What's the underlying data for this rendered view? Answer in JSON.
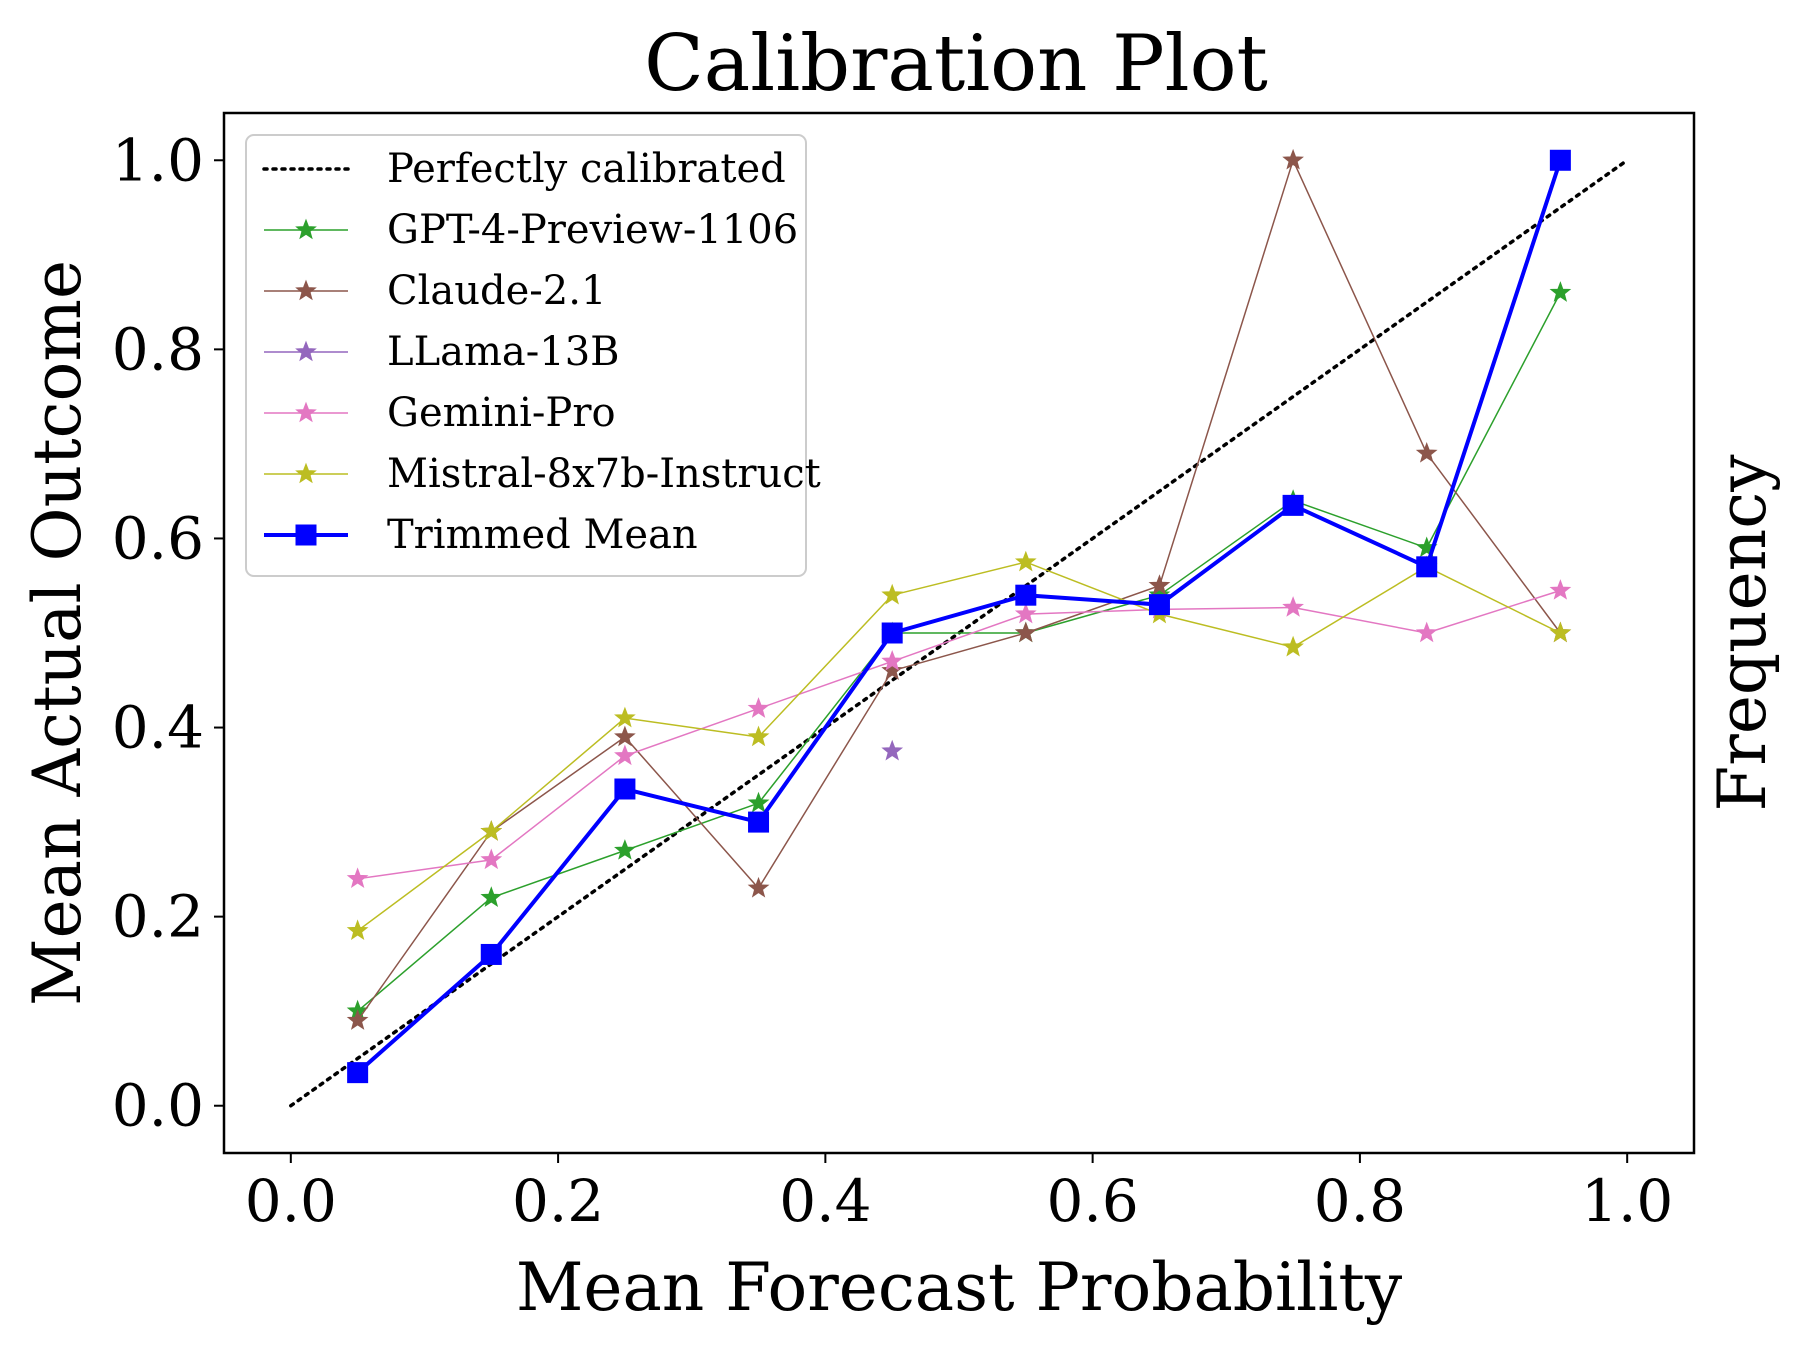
{
  "chart_data": {
    "type": "line",
    "title": "Calibration Plot",
    "xlabel": "Mean Forecast Probability",
    "ylabel": "Mean Actual Outcome",
    "y2label": "Frequency",
    "xlim": [
      -0.05,
      1.05
    ],
    "ylim": [
      -0.05,
      1.05
    ],
    "xticks": [
      "0.0",
      "0.2",
      "0.4",
      "0.6",
      "0.8",
      "1.0"
    ],
    "yticks": [
      "0.0",
      "0.2",
      "0.4",
      "0.6",
      "0.8",
      "1.0"
    ],
    "grid": false,
    "legend_position": "top-left",
    "x": [
      0.05,
      0.15,
      0.25,
      0.35,
      0.45,
      0.55,
      0.65,
      0.75,
      0.85,
      0.95
    ],
    "reference": {
      "name": "Perfectly calibrated",
      "x": [
        0,
        1
      ],
      "y": [
        0,
        1
      ],
      "color": "#000000",
      "style": "dotted"
    },
    "series": [
      {
        "name": "GPT-4-Preview-1106",
        "color": "#2ca02c",
        "marker": "star",
        "values": [
          0.1,
          0.22,
          0.27,
          0.32,
          0.5,
          0.5,
          0.54,
          0.64,
          0.59,
          0.86
        ]
      },
      {
        "name": "Claude-2.1",
        "color": "#8c564b",
        "marker": "star",
        "values": [
          0.09,
          0.29,
          0.39,
          0.23,
          0.46,
          0.5,
          0.55,
          1.0,
          0.69,
          0.5
        ]
      },
      {
        "name": "LLama-13B",
        "color": "#9467bd",
        "marker": "star",
        "values": [
          null,
          null,
          null,
          null,
          0.375,
          null,
          null,
          null,
          null,
          null
        ]
      },
      {
        "name": "Gemini-Pro",
        "color": "#e377c2",
        "marker": "star",
        "values": [
          0.24,
          0.26,
          0.37,
          0.42,
          0.47,
          0.52,
          0.525,
          0.527,
          0.5,
          0.545
        ]
      },
      {
        "name": "Mistral-8x7b-Instruct",
        "color": "#bcbd22",
        "marker": "star",
        "values": [
          0.185,
          0.29,
          0.41,
          0.39,
          0.54,
          0.575,
          0.52,
          0.485,
          0.57,
          0.5
        ]
      },
      {
        "name": "Trimmed Mean",
        "color": "#0000ff",
        "marker": "square",
        "values": [
          0.035,
          0.16,
          0.335,
          0.3,
          0.5,
          0.54,
          0.53,
          0.635,
          0.57,
          1.0
        ]
      }
    ]
  }
}
